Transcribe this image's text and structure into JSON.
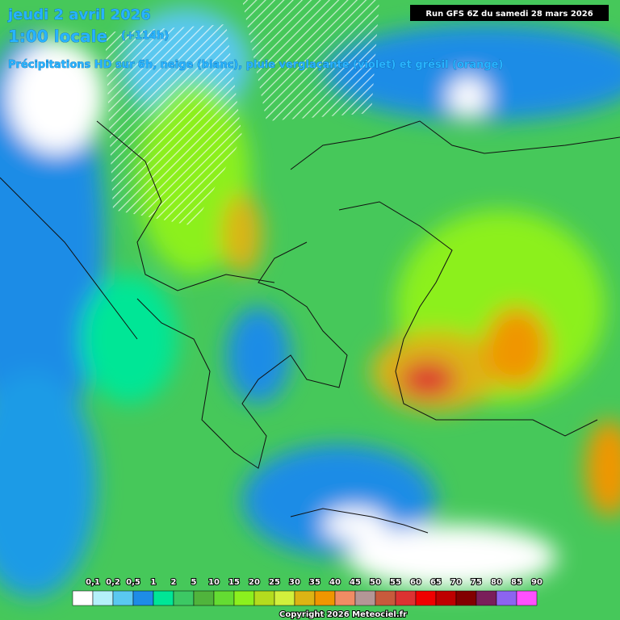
{
  "header": {
    "date": "jeudi 2 avril 2026",
    "time": "1:00 locale",
    "lead": "(+114h)",
    "run": "Run GFS 6Z du samedi 28 mars 2026",
    "subtitle": "Précipitations HD sur 6h, neige (blanc), pluie verglaçante (violet) et grésil (orange)"
  },
  "legend": {
    "items": [
      {
        "label": "0,1",
        "color": "#ffffff"
      },
      {
        "label": "0,2",
        "color": "#b4f0fa"
      },
      {
        "label": "0,5",
        "color": "#5ac8f0"
      },
      {
        "label": "1",
        "color": "#1e8ce6"
      },
      {
        "label": "2",
        "color": "#00e696"
      },
      {
        "label": "5",
        "color": "#3cc864"
      },
      {
        "label": "10",
        "color": "#50b43c"
      },
      {
        "label": "15",
        "color": "#64dc32"
      },
      {
        "label": "20",
        "color": "#8cf01e"
      },
      {
        "label": "25",
        "color": "#b4dc1e"
      },
      {
        "label": "30",
        "color": "#d2f03c"
      },
      {
        "label": "35",
        "color": "#dcb414"
      },
      {
        "label": "40",
        "color": "#f09600"
      },
      {
        "label": "45",
        "color": "#f08c64"
      },
      {
        "label": "50",
        "color": "#b49696"
      },
      {
        "label": "55",
        "color": "#c85a3c"
      },
      {
        "label": "60",
        "color": "#dc3232"
      },
      {
        "label": "65",
        "color": "#f00000"
      },
      {
        "label": "70",
        "color": "#be0000"
      },
      {
        "label": "75",
        "color": "#820000"
      },
      {
        "label": "80",
        "color": "#7a1e5a"
      },
      {
        "label": "85",
        "color": "#8c64f0"
      },
      {
        "label": "90",
        "color": "#ff50ff"
      }
    ]
  },
  "footer": {
    "copyright": "Copyright 2026 Meteociel.fr"
  }
}
